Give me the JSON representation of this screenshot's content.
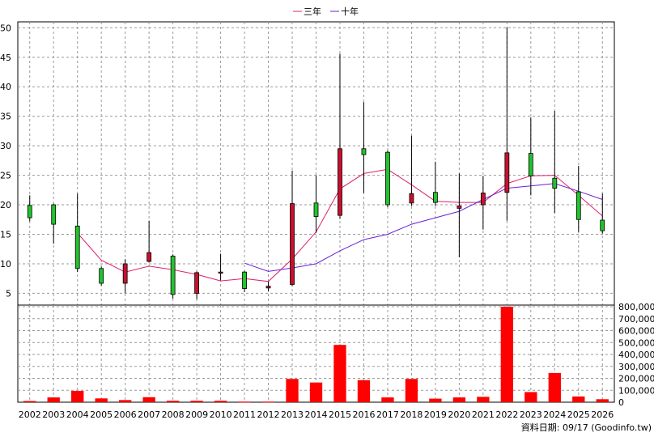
{
  "chart_data": {
    "type": "candlestick",
    "title": "",
    "legend": {
      "placement": "top-center",
      "items": [
        {
          "name": "三年",
          "color": "#e0206e"
        },
        {
          "name": "十年",
          "color": "#6a1fd6"
        }
      ]
    },
    "categories": [
      "2002",
      "2003",
      "2004",
      "2005",
      "2006",
      "2007",
      "2008",
      "2009",
      "2010",
      "2011",
      "2012",
      "2013",
      "2014",
      "2015",
      "2016",
      "2017",
      "2018",
      "2019",
      "2020",
      "2021",
      "2022",
      "2023",
      "2024",
      "2025",
      "2026"
    ],
    "price_axis": {
      "ticks": [
        "5",
        "10",
        "15",
        "20",
        "25",
        "30",
        "35",
        "40",
        "45",
        "50"
      ],
      "range": [
        3,
        51
      ],
      "grid": true
    },
    "volume_axis": {
      "ticks": [
        "0",
        "100,000",
        "200,000",
        "300,000",
        "400,000",
        "500,000",
        "600,000",
        "700,000",
        "800,000"
      ],
      "range": [
        0,
        800000
      ],
      "grid": true
    },
    "candles": [
      {
        "x": "2002",
        "open": 17.8,
        "close": 19.9,
        "high": 21.6,
        "low": 17.2
      },
      {
        "x": "2003",
        "open": 16.7,
        "close": 20.0,
        "high": 20.2,
        "low": 13.4
      },
      {
        "x": "2004",
        "open": 9.2,
        "close": 16.4,
        "high": 21.9,
        "low": 8.6
      },
      {
        "x": "2005",
        "open": 6.7,
        "close": 9.2,
        "high": 9.5,
        "low": 6.3
      },
      {
        "x": "2006",
        "open": 10.0,
        "close": 6.7,
        "high": 10.8,
        "low": 5.0
      },
      {
        "x": "2007",
        "open": 11.9,
        "close": 10.4,
        "high": 17.3,
        "low": 10.2
      },
      {
        "x": "2008",
        "open": 4.8,
        "close": 11.3,
        "high": 11.6,
        "low": 4.1
      },
      {
        "x": "2009",
        "open": 8.5,
        "close": 5.0,
        "high": 8.7,
        "low": 4.0
      },
      {
        "x": "2010",
        "open": 8.6,
        "close": 8.4,
        "high": 11.7,
        "low": 7.2
      },
      {
        "x": "2011",
        "open": 5.8,
        "close": 8.6,
        "high": 8.8,
        "low": 5.2
      },
      {
        "x": "2012",
        "open": 6.2,
        "close": 5.9,
        "high": 7.0,
        "low": 5.3
      },
      {
        "x": "2013",
        "open": 20.2,
        "close": 6.5,
        "high": 25.8,
        "low": 6.2
      },
      {
        "x": "2014",
        "open": 18.0,
        "close": 20.3,
        "high": 25.0,
        "low": 15.3
      },
      {
        "x": "2015",
        "open": 29.5,
        "close": 18.2,
        "high": 45.6,
        "low": 17.6
      },
      {
        "x": "2016",
        "open": 28.5,
        "close": 29.5,
        "high": 37.4,
        "low": 22.0
      },
      {
        "x": "2017",
        "open": 20.0,
        "close": 28.9,
        "high": 29.2,
        "low": 19.6
      },
      {
        "x": "2018",
        "open": 21.9,
        "close": 20.3,
        "high": 31.7,
        "low": 19.8
      },
      {
        "x": "2019",
        "open": 20.4,
        "close": 22.1,
        "high": 27.3,
        "low": 19.8
      },
      {
        "x": "2020",
        "open": 19.8,
        "close": 19.4,
        "high": 25.3,
        "low": 11.1
      },
      {
        "x": "2021",
        "open": 22.0,
        "close": 20.0,
        "high": 24.9,
        "low": 15.8
      },
      {
        "x": "2022",
        "open": 28.8,
        "close": 22.1,
        "high": 50.1,
        "low": 17.3
      },
      {
        "x": "2023",
        "open": 24.9,
        "close": 28.7,
        "high": 34.8,
        "low": 21.6
      },
      {
        "x": "2024",
        "open": 22.8,
        "close": 24.5,
        "high": 35.9,
        "low": 18.6
      },
      {
        "x": "2025",
        "open": 17.5,
        "close": 22.2,
        "high": 26.6,
        "low": 15.4
      },
      {
        "x": "2026",
        "open": 15.6,
        "close": 17.4,
        "high": 21.9,
        "low": 15.1
      }
    ],
    "series": [
      {
        "name": "三年",
        "color": "#e0206e",
        "values": [
          null,
          null,
          15.2,
          10.6,
          8.6,
          9.6,
          9.0,
          8.2,
          7.1,
          7.5,
          7.0,
          10.8,
          15.4,
          22.7,
          25.3,
          26.0,
          23.4,
          20.6,
          20.4,
          20.4,
          23.6,
          24.9,
          25.0,
          21.6,
          18.1
        ]
      },
      {
        "name": "十年",
        "color": "#6a1fd6",
        "values": [
          null,
          null,
          null,
          null,
          null,
          null,
          null,
          null,
          null,
          10.1,
          8.7,
          9.3,
          10.0,
          12.2,
          14.1,
          15.0,
          16.7,
          17.8,
          18.9,
          20.9,
          22.8,
          23.2,
          23.6,
          22.3,
          20.9
        ]
      }
    ],
    "volume": {
      "color": "#ff0000",
      "values": [
        10000,
        40000,
        95000,
        32000,
        18000,
        42000,
        12000,
        12000,
        12000,
        5000,
        5000,
        195000,
        165000,
        480000,
        185000,
        40000,
        195000,
        30000,
        40000,
        45000,
        800000,
        85000,
        245000,
        48000,
        25000
      ]
    },
    "source_note": "資料日期: 09/17  (Goodinfo.tw)"
  }
}
